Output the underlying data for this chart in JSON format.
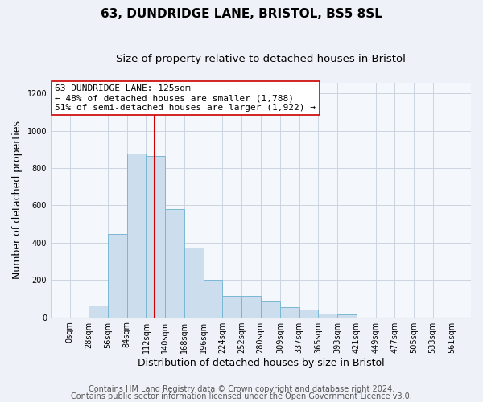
{
  "title": "63, DUNDRIDGE LANE, BRISTOL, BS5 8SL",
  "subtitle": "Size of property relative to detached houses in Bristol",
  "xlabel": "Distribution of detached houses by size in Bristol",
  "ylabel": "Number of detached properties",
  "bar_edges": [
    0,
    28,
    56,
    84,
    112,
    140,
    168,
    196,
    224,
    252,
    280,
    309,
    337,
    365,
    393,
    421,
    449,
    477,
    505,
    533,
    561
  ],
  "bar_heights": [
    0,
    65,
    445,
    880,
    865,
    580,
    375,
    200,
    115,
    115,
    85,
    55,
    40,
    20,
    15,
    0,
    0,
    0,
    0,
    0
  ],
  "bar_color": "#ccdeed",
  "bar_edge_color": "#7ab8d4",
  "vline_x": 125,
  "vline_color": "#cc0000",
  "annotation_line1": "63 DUNDRIDGE LANE: 125sqm",
  "annotation_line2": "← 48% of detached houses are smaller (1,788)",
  "annotation_line3": "51% of semi-detached houses are larger (1,922) →",
  "box_edge_color": "#cc0000",
  "box_face_color": "white",
  "ylim": [
    0,
    1260
  ],
  "yticks": [
    0,
    200,
    400,
    600,
    800,
    1000,
    1200
  ],
  "xtick_labels": [
    "0sqm",
    "28sqm",
    "56sqm",
    "84sqm",
    "112sqm",
    "140sqm",
    "168sqm",
    "196sqm",
    "224sqm",
    "252sqm",
    "280sqm",
    "309sqm",
    "337sqm",
    "365sqm",
    "393sqm",
    "421sqm",
    "449sqm",
    "477sqm",
    "505sqm",
    "533sqm",
    "561sqm"
  ],
  "footer_line1": "Contains HM Land Registry data © Crown copyright and database right 2024.",
  "footer_line2": "Contains public sector information licensed under the Open Government Licence v3.0.",
  "background_color": "#eef2f8",
  "plot_background_color": "#f4f8fc",
  "grid_color": "#ccd4e0",
  "title_fontsize": 11,
  "subtitle_fontsize": 9.5,
  "axis_label_fontsize": 9,
  "tick_fontsize": 7,
  "annotation_fontsize": 8,
  "footer_fontsize": 7
}
